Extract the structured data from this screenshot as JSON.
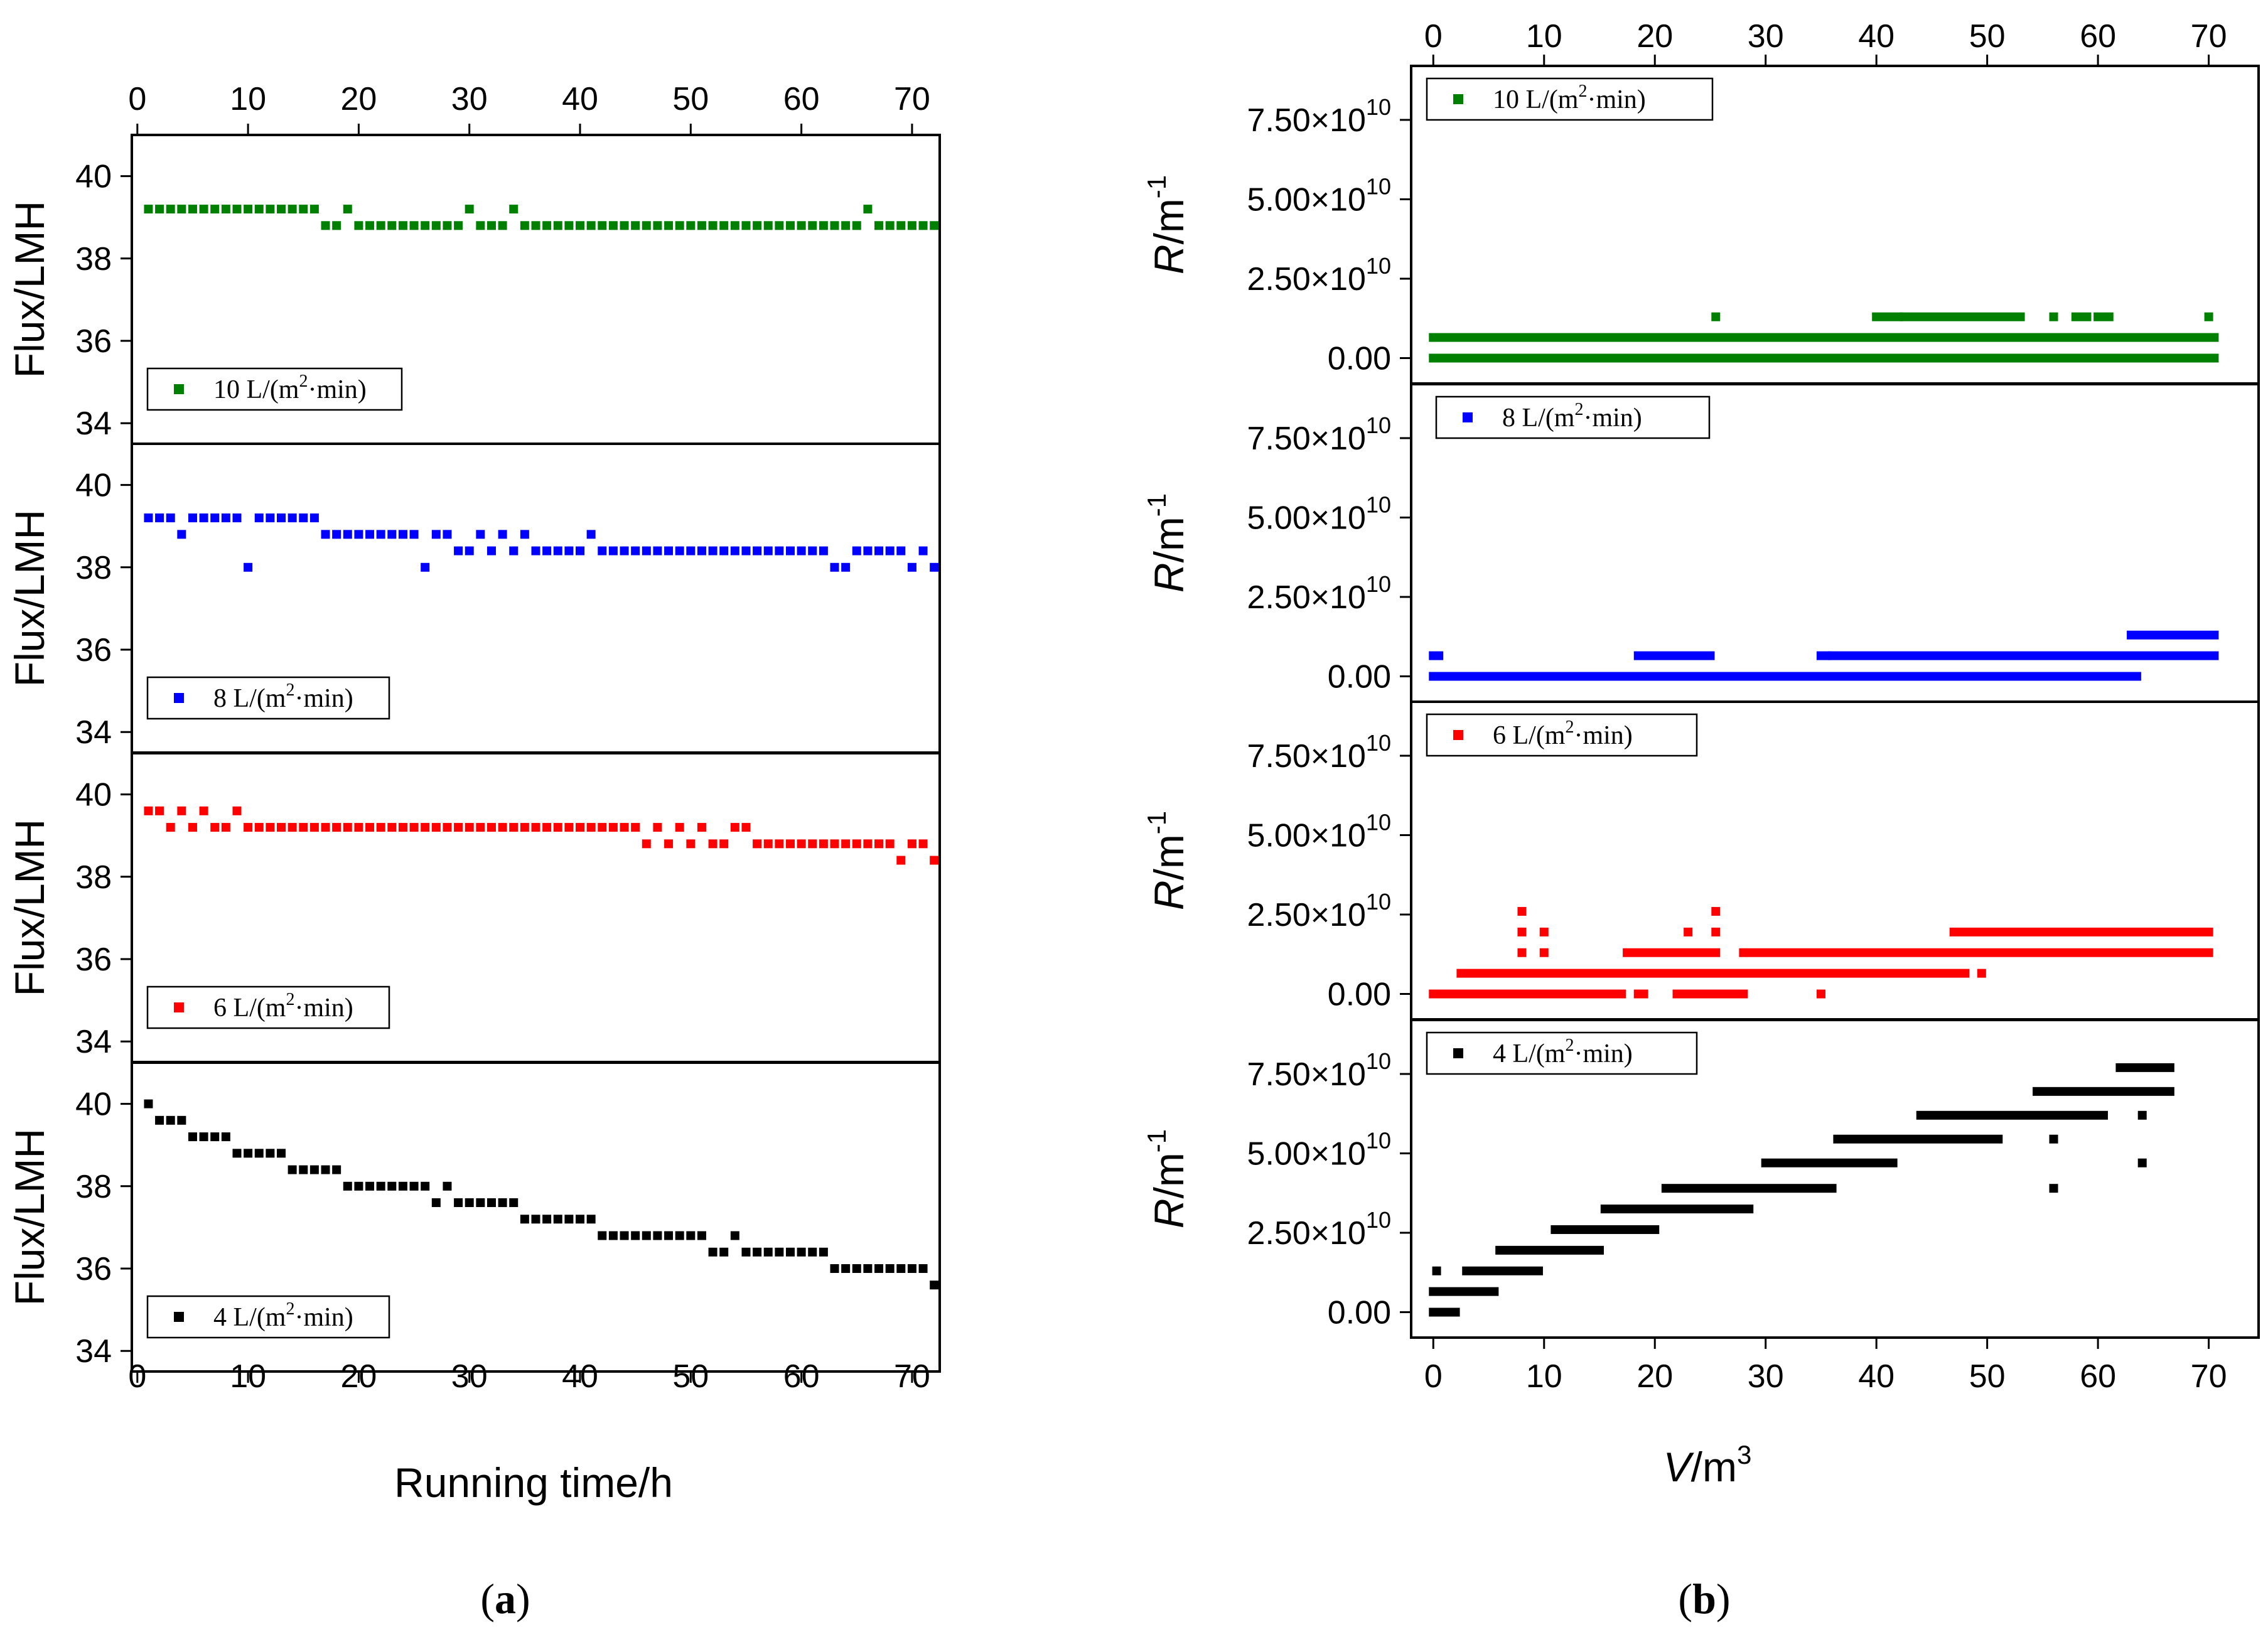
{
  "figure": {
    "label_a": "(a)",
    "label_b": "(b)"
  },
  "chart_data": [
    {
      "id": "a",
      "type": "scatter",
      "xlabel": "Running time/h",
      "ylabel": "Flux/LMH",
      "xlim": [
        -0.5,
        72.5
      ],
      "xticks": [
        0,
        10,
        20,
        30,
        40,
        50,
        60,
        70
      ],
      "ylim": [
        33.5,
        41
      ],
      "yticks": [
        34,
        36,
        38,
        40
      ],
      "legend_position": "bottom-left",
      "series": [
        {
          "name": "10 L/(m2·min)",
          "legend_main": "10 L/(m",
          "legend_sup": "2",
          "legend_tail": "·min)",
          "color": "#008000",
          "ranges": [
            [
              1,
              16,
              39.2
            ],
            [
              17,
              18,
              38.8
            ],
            [
              19,
              19,
              39.2
            ],
            [
              20,
              29,
              38.8
            ],
            [
              30,
              30,
              39.2
            ],
            [
              31,
              33,
              38.8
            ],
            [
              34,
              34,
              39.2
            ],
            [
              35,
              65,
              38.8
            ],
            [
              66,
              66,
              39.2
            ],
            [
              67,
              72,
              38.8
            ]
          ]
        },
        {
          "name": "8 L/(m2·min)",
          "legend_main": "8 L/(m",
          "legend_sup": "2",
          "legend_tail": "·min)",
          "color": "#0000ff",
          "ranges": [
            [
              1,
              3,
              39.2
            ],
            [
              4,
              4,
              38.8
            ],
            [
              5,
              9,
              39.2
            ],
            [
              10,
              10,
              38.0
            ],
            [
              11,
              16,
              39.2
            ],
            [
              17,
              25,
              38.8
            ],
            [
              26,
              26,
              38.0
            ],
            [
              27,
              28,
              38.8
            ],
            [
              29,
              30,
              38.4
            ],
            [
              31,
              31,
              38.8
            ],
            [
              32,
              32,
              38.4
            ],
            [
              33,
              33,
              38.8
            ],
            [
              34,
              34,
              38.4
            ],
            [
              35,
              35,
              38.8
            ],
            [
              36,
              40,
              38.4
            ],
            [
              41,
              41,
              38.8
            ],
            [
              42,
              62,
              38.4
            ],
            [
              63,
              64,
              38.0
            ],
            [
              65,
              69,
              38.4
            ],
            [
              70,
              70,
              38.0
            ],
            [
              71,
              71,
              38.4
            ],
            [
              72,
              72,
              38.0
            ]
          ]
        },
        {
          "name": "6 L/(m2·min)",
          "legend_main": "6 L/(m",
          "legend_sup": "2",
          "legend_tail": "·min)",
          "color": "#ff0000",
          "ranges": [
            [
              1,
              2,
              39.6
            ],
            [
              3,
              3,
              39.2
            ],
            [
              4,
              4,
              39.6
            ],
            [
              5,
              5,
              39.2
            ],
            [
              6,
              6,
              39.6
            ],
            [
              7,
              8,
              39.2
            ],
            [
              9,
              9,
              39.6
            ],
            [
              10,
              45,
              39.2
            ],
            [
              46,
              46,
              38.8
            ],
            [
              47,
              47,
              39.2
            ],
            [
              48,
              48,
              38.8
            ],
            [
              49,
              49,
              39.2
            ],
            [
              50,
              50,
              38.8
            ],
            [
              51,
              51,
              39.2
            ],
            [
              52,
              53,
              38.8
            ],
            [
              54,
              55,
              39.2
            ],
            [
              56,
              68,
              38.8
            ],
            [
              69,
              69,
              38.4
            ],
            [
              70,
              71,
              38.8
            ],
            [
              72,
              72,
              38.4
            ]
          ]
        },
        {
          "name": "4 L/(m2·min)",
          "legend_main": "4 L/(m",
          "legend_sup": "2",
          "legend_tail": "·min)",
          "color": "#000000",
          "ranges": [
            [
              1,
              1,
              40.0
            ],
            [
              2,
              4,
              39.6
            ],
            [
              5,
              8,
              39.2
            ],
            [
              9,
              13,
              38.8
            ],
            [
              14,
              18,
              38.4
            ],
            [
              19,
              26,
              38.0
            ],
            [
              27,
              27,
              37.6
            ],
            [
              28,
              28,
              38.0
            ],
            [
              29,
              34,
              37.6
            ],
            [
              35,
              41,
              37.2
            ],
            [
              42,
              51,
              36.8
            ],
            [
              52,
              53,
              36.4
            ],
            [
              54,
              54,
              36.8
            ],
            [
              55,
              62,
              36.4
            ],
            [
              63,
              71,
              36.0
            ],
            [
              72,
              72,
              35.6
            ]
          ]
        }
      ]
    },
    {
      "id": "b",
      "type": "scatter",
      "xlabel_var": "V",
      "xlabel_unit": "/m",
      "xlabel_sup": "3",
      "ylabel_var": "R",
      "ylabel_unit": "/m",
      "ylabel_sup": "-1",
      "xlim": [
        -2,
        74.5
      ],
      "xticks": [
        0,
        10,
        20,
        30,
        40,
        50,
        60,
        70
      ],
      "ylim": [
        -8000000000.0,
        92000000000.0
      ],
      "yticks": [
        0,
        25000000000.0,
        50000000000.0,
        75000000000.0
      ],
      "ytick_labels": [
        {
          "mant": "0.00",
          "times": "",
          "exp": ""
        },
        {
          "mant": "2.50",
          "times": "×10",
          "exp": "10"
        },
        {
          "mant": "5.00",
          "times": "×10",
          "exp": "10"
        },
        {
          "mant": "7.50",
          "times": "×10",
          "exp": "10"
        }
      ],
      "legend_position": "top-left",
      "series": [
        {
          "name": "10 L/(m2·min)",
          "legend_main": "10 L/(m",
          "legend_sup": "2",
          "legend_tail": "·min)",
          "color": "#008000",
          "segments": [
            [
              0,
              70.5,
              0.0
            ],
            [
              0,
              70.5,
              6500000000.0
            ],
            [
              25.5,
              25.5,
              13000000000.0
            ],
            [
              40,
              42,
              13000000000.0
            ],
            [
              42.5,
              53,
              13000000000.0
            ],
            [
              56,
              56,
              13000000000.0
            ],
            [
              58,
              59,
              13000000000.0
            ],
            [
              60,
              61,
              13000000000.0
            ],
            [
              70,
              70,
              13000000000.0
            ]
          ]
        },
        {
          "name": "8 L/(m2·min)",
          "legend_main": "8 L/(m",
          "legend_sup": "2",
          "legend_tail": "·min)",
          "color": "#0000ff",
          "segments": [
            [
              0,
              63.5,
              0.0
            ],
            [
              0,
              0.5,
              6500000000.0
            ],
            [
              18.5,
              25,
              6500000000.0
            ],
            [
              35,
              35.5,
              6500000000.0
            ],
            [
              36,
              70.5,
              6500000000.0
            ],
            [
              63,
              70.5,
              13000000000.0
            ]
          ]
        },
        {
          "name": "6 L/(m2·min)",
          "legend_main": "6 L/(m",
          "legend_sup": "2",
          "legend_tail": "·min)",
          "color": "#ff0000",
          "segments": [
            [
              0,
              17,
              0.0
            ],
            [
              18.5,
              19,
              0.0
            ],
            [
              22,
              28,
              0.0
            ],
            [
              35,
              35,
              0.0
            ],
            [
              2.5,
              48,
              6500000000.0
            ],
            [
              49.5,
              49.5,
              6500000000.0
            ],
            [
              8,
              8,
              13000000000.0
            ],
            [
              10,
              10,
              13000000000.0
            ],
            [
              17.5,
              25.5,
              13000000000.0
            ],
            [
              28,
              70,
              13000000000.0
            ],
            [
              8,
              8,
              19500000000.0
            ],
            [
              10,
              10,
              19500000000.0
            ],
            [
              23,
              23,
              19500000000.0
            ],
            [
              25.5,
              25.5,
              19500000000.0
            ],
            [
              47,
              70,
              19500000000.0
            ],
            [
              8,
              8,
              26000000000.0
            ],
            [
              25.5,
              25.5,
              26000000000.0
            ]
          ]
        },
        {
          "name": "4 L/(m2·min)",
          "legend_main": "4 L/(m",
          "legend_sup": "2",
          "legend_tail": "·min)",
          "color": "#000000",
          "segments": [
            [
              0,
              2,
              0.0
            ],
            [
              0,
              5.5,
              6500000000.0
            ],
            [
              0.3,
              0.3,
              13000000000.0
            ],
            [
              3,
              9.5,
              13000000000.0
            ],
            [
              6,
              15,
              19500000000.0
            ],
            [
              11,
              20,
              26000000000.0
            ],
            [
              15.5,
              28.5,
              32500000000.0
            ],
            [
              21,
              36,
              39000000000.0
            ],
            [
              30,
              41.5,
              47000000000.0
            ],
            [
              36.5,
              51,
              54500000000.0
            ],
            [
              44,
              60.5,
              62000000000.0
            ],
            [
              54.5,
              66.5,
              69500000000.0
            ],
            [
              62,
              66.5,
              77000000000.0
            ],
            [
              56,
              56,
              54500000000.0
            ],
            [
              56,
              56,
              39000000000.0
            ],
            [
              64,
              64,
              62000000000.0
            ],
            [
              64,
              64,
              47000000000.0
            ]
          ]
        }
      ]
    }
  ]
}
